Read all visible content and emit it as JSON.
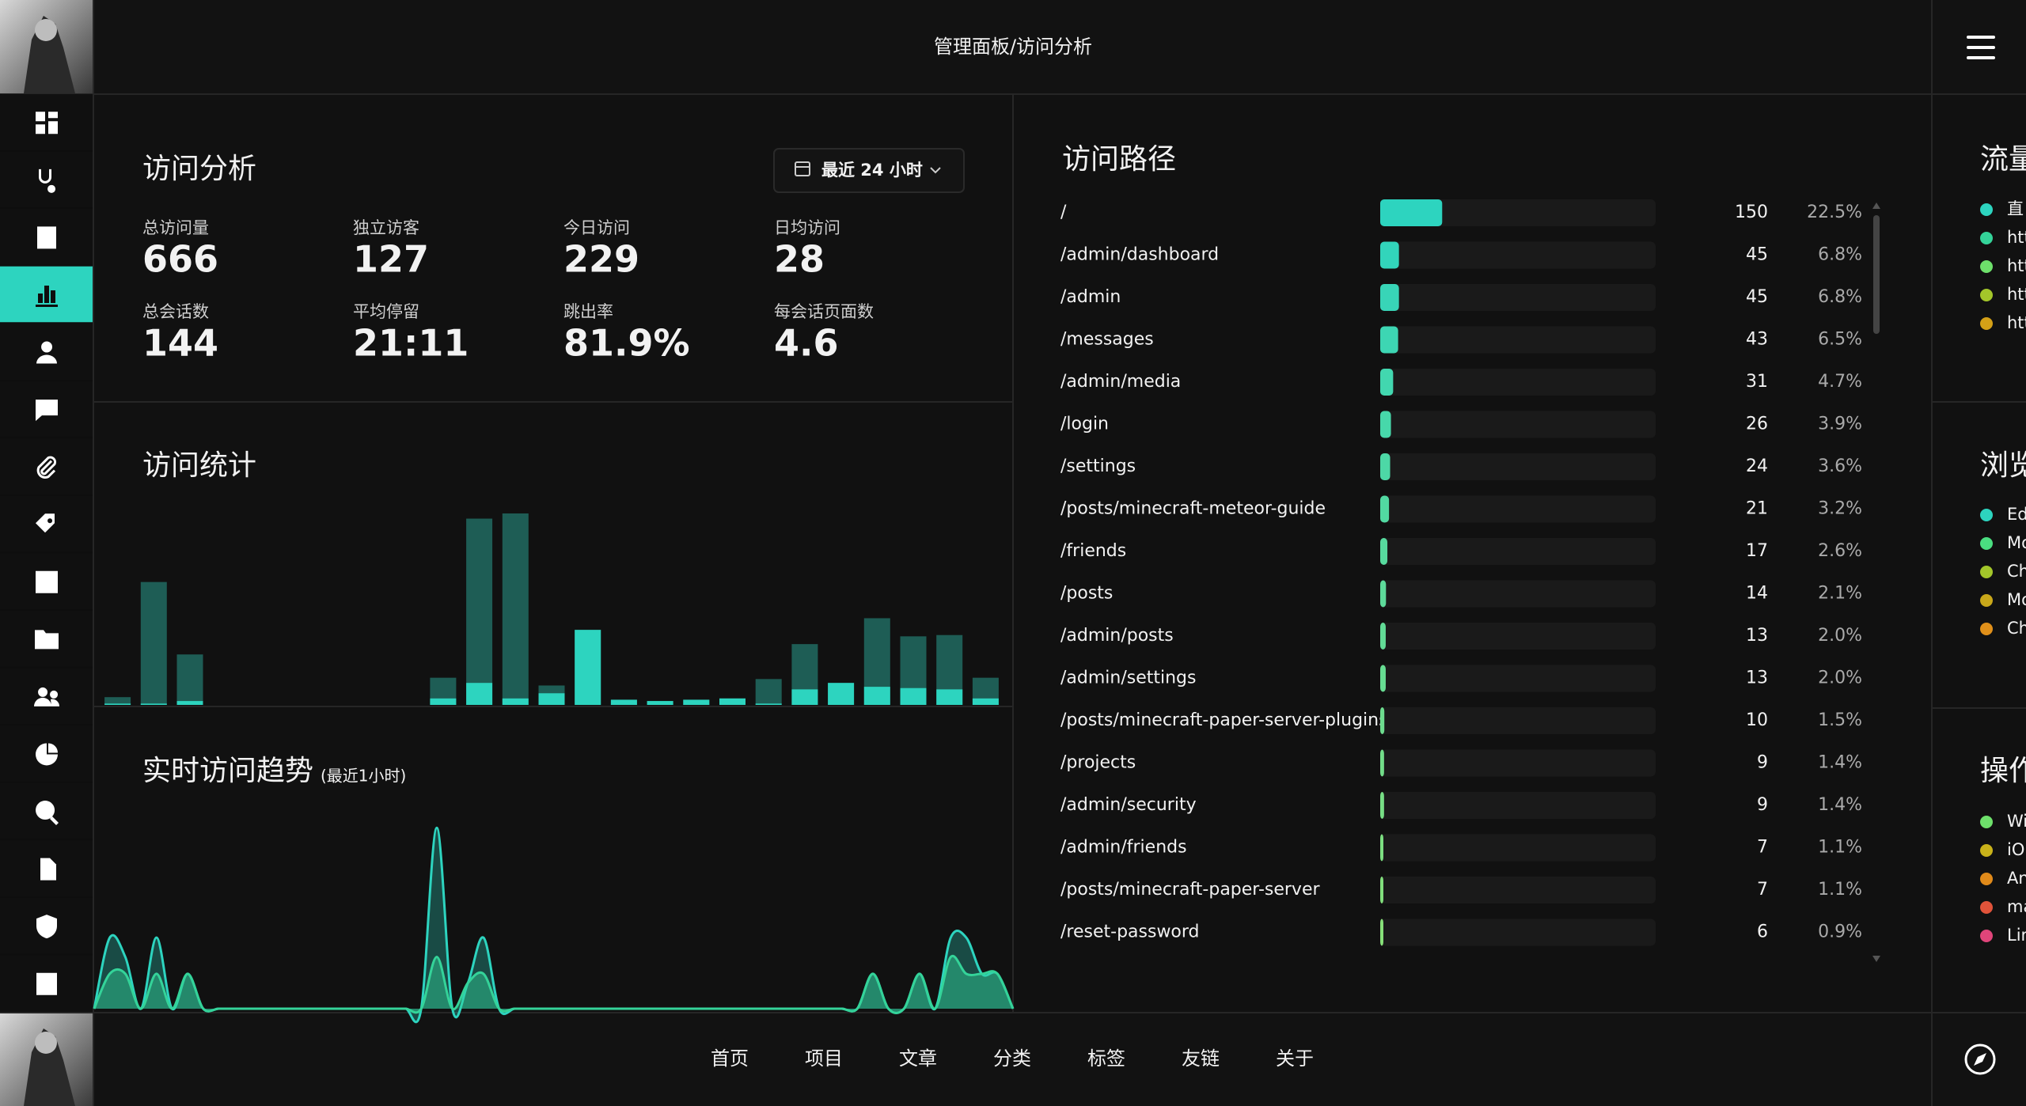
{
  "topbar": {
    "title": "管理面板/访问分析"
  },
  "overview": {
    "title": "访问分析",
    "range": "最近 24 小时",
    "stats": [
      {
        "label": "总访问量",
        "value": 666
      },
      {
        "label": "独立访客",
        "value": 127
      },
      {
        "label": "今日访问",
        "value": 229
      },
      {
        "label": "日均访问",
        "value": 28
      },
      {
        "label": "总会话数",
        "value": 144
      },
      {
        "label": "平均停留",
        "value": "21:11"
      },
      {
        "label": "跳出率",
        "value": "81.9%"
      },
      {
        "label": "每会话页面数",
        "value": 4.6
      }
    ]
  },
  "visit_stats": {
    "title": "访问统计",
    "series": [
      {
        "color": "#1e5d55",
        "values": [
          6,
          95,
          39,
          0,
          0,
          0,
          0,
          0,
          0,
          21,
          144,
          148,
          15,
          58,
          4,
          3,
          4,
          5,
          20,
          47,
          17,
          67,
          53,
          54,
          21
        ]
      },
      {
        "color": "#2dd4bf",
        "values": [
          1,
          1,
          3,
          0,
          0,
          0,
          0,
          0,
          0,
          5,
          17,
          5,
          9,
          58,
          4,
          3,
          4,
          5,
          1,
          12,
          17,
          14,
          13,
          12,
          5
        ]
      }
    ]
  },
  "realtime": {
    "title": "实时访问趋势",
    "subtitle": "(最近1小时)",
    "series": [
      {
        "color": "#2dd4bf",
        "values": [
          0,
          55,
          40,
          0,
          55,
          0,
          27,
          0,
          0,
          0,
          0,
          0,
          0,
          0,
          0,
          0,
          0,
          0,
          0,
          0,
          0,
          0,
          140,
          0,
          20,
          55,
          0,
          0,
          0,
          0,
          0,
          0,
          0,
          0,
          0,
          0,
          0,
          0,
          0,
          0,
          0,
          0,
          0,
          0,
          0,
          0,
          0,
          0,
          0,
          0,
          27,
          0,
          0,
          27,
          0,
          55,
          55,
          27,
          27,
          0
        ]
      },
      {
        "color": "#34d399",
        "values": [
          0,
          27,
          27,
          0,
          27,
          0,
          27,
          0,
          0,
          0,
          0,
          0,
          0,
          0,
          0,
          0,
          0,
          0,
          0,
          0,
          0,
          0,
          40,
          0,
          20,
          27,
          0,
          0,
          0,
          0,
          0,
          0,
          0,
          0,
          0,
          0,
          0,
          0,
          0,
          0,
          0,
          0,
          0,
          0,
          0,
          0,
          0,
          0,
          0,
          0,
          27,
          0,
          0,
          27,
          0,
          40,
          27,
          27,
          27,
          0
        ]
      }
    ]
  },
  "paths": {
    "title": "访问路径",
    "rows": [
      {
        "path": "/",
        "count": 150,
        "share": 22.5,
        "share_label": "22.5%"
      },
      {
        "path": "/admin/dashboard",
        "count": 45,
        "share": 6.8,
        "share_label": "6.8%"
      },
      {
        "path": "/admin",
        "count": 45,
        "share": 6.8,
        "share_label": "6.8%"
      },
      {
        "path": "/messages",
        "count": 43,
        "share": 6.5,
        "share_label": "6.5%"
      },
      {
        "path": "/admin/media",
        "count": 31,
        "share": 4.7,
        "share_label": "4.7%"
      },
      {
        "path": "/login",
        "count": 26,
        "share": 3.9,
        "share_label": "3.9%"
      },
      {
        "path": "/settings",
        "count": 24,
        "share": 3.6,
        "share_label": "3.6%"
      },
      {
        "path": "/posts/minecraft-meteor-guide",
        "count": 21,
        "share": 3.2,
        "share_label": "3.2%"
      },
      {
        "path": "/friends",
        "count": 17,
        "share": 2.6,
        "share_label": "2.6%"
      },
      {
        "path": "/posts",
        "count": 14,
        "share": 2.1,
        "share_label": "2.1%"
      },
      {
        "path": "/admin/posts",
        "count": 13,
        "share": 2,
        "share_label": "2.0%"
      },
      {
        "path": "/admin/settings",
        "count": 13,
        "share": 2,
        "share_label": "2.0%"
      },
      {
        "path": "/posts/minecraft-paper-server-plugins",
        "count": 10,
        "share": 1.5,
        "share_label": "1.5%"
      },
      {
        "path": "/projects",
        "count": 9,
        "share": 1.4,
        "share_label": "1.4%"
      },
      {
        "path": "/admin/security",
        "count": 9,
        "share": 1.4,
        "share_label": "1.4%"
      },
      {
        "path": "/admin/friends",
        "count": 7,
        "share": 1.1,
        "share_label": "1.1%"
      },
      {
        "path": "/posts/minecraft-paper-server",
        "count": 7,
        "share": 1.1,
        "share_label": "1.1%"
      },
      {
        "path": "/reset-password",
        "count": 6,
        "share": 0.9,
        "share_label": "0.9%"
      }
    ]
  },
  "side_panels": [
    {
      "title": "流量",
      "items": [
        {
          "text": "直",
          "color": "#2dd4bf"
        },
        {
          "text": "htt",
          "color": "#34d399"
        },
        {
          "text": "htt",
          "color": "#6ee06b"
        },
        {
          "text": "htt",
          "color": "#a3c62a"
        },
        {
          "text": "htt",
          "color": "#d4a017"
        }
      ]
    },
    {
      "title": "浏览",
      "items": [
        {
          "text": "Ed",
          "color": "#2dd4bf"
        },
        {
          "text": "Mo",
          "color": "#4ade80"
        },
        {
          "text": "Ch",
          "color": "#a3c62a"
        },
        {
          "text": "Mo",
          "color": "#c9a81a"
        },
        {
          "text": "Ch",
          "color": "#e0901a"
        }
      ]
    },
    {
      "title": "操作",
      "items": [
        {
          "text": "Wi",
          "color": "#6ee06b"
        },
        {
          "text": "iO",
          "color": "#c9b21a"
        },
        {
          "text": "An",
          "color": "#e08a1a"
        },
        {
          "text": "ma",
          "color": "#e0533a"
        },
        {
          "text": "Lin",
          "color": "#e0457a"
        }
      ]
    }
  ],
  "footer": {
    "nav": [
      "首页",
      "项目",
      "文章",
      "分类",
      "标签",
      "友链",
      "关于"
    ]
  }
}
